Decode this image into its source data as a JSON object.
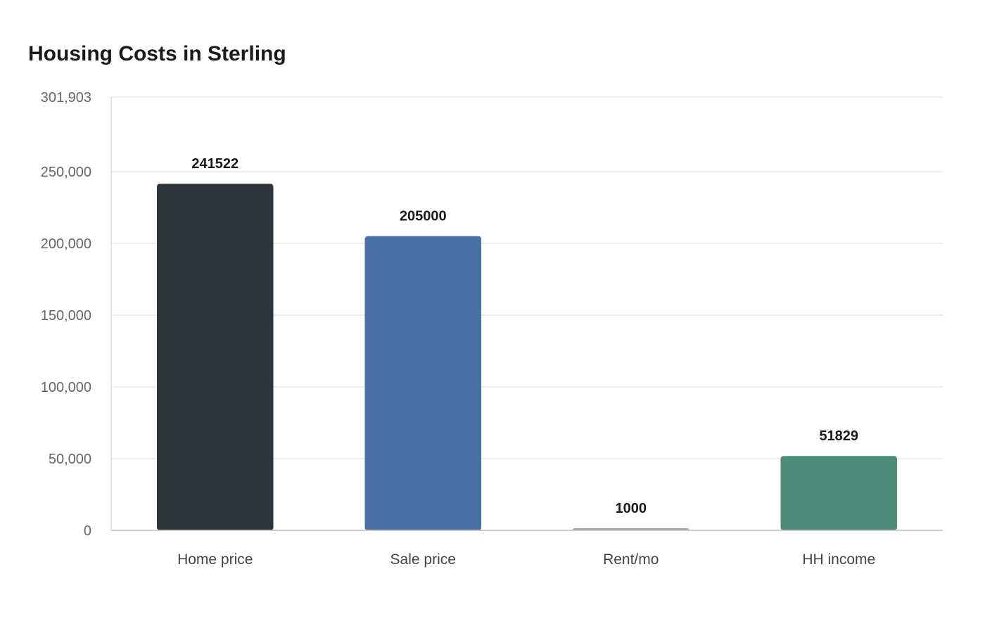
{
  "chart_data": {
    "type": "bar",
    "title": "Housing Costs in Sterling",
    "categories": [
      "Home price",
      "Sale price",
      "Rent/mo",
      "HH income"
    ],
    "values": [
      241522,
      205000,
      1000,
      51829
    ],
    "data_labels": [
      "241522",
      "205000",
      "1000",
      "51829"
    ],
    "colors": [
      "#2e3538",
      "#4a6fa5",
      "#9aa0a6",
      "#4e8c7a"
    ],
    "ylim": [
      0,
      301903
    ],
    "yticks": [
      0,
      50000,
      100000,
      150000,
      200000,
      250000,
      301903
    ],
    "ytick_labels": [
      "0",
      "50,000",
      "100,000",
      "150,000",
      "200,000",
      "250,000",
      "301,903"
    ],
    "grid": true,
    "xlabel": "",
    "ylabel": ""
  }
}
